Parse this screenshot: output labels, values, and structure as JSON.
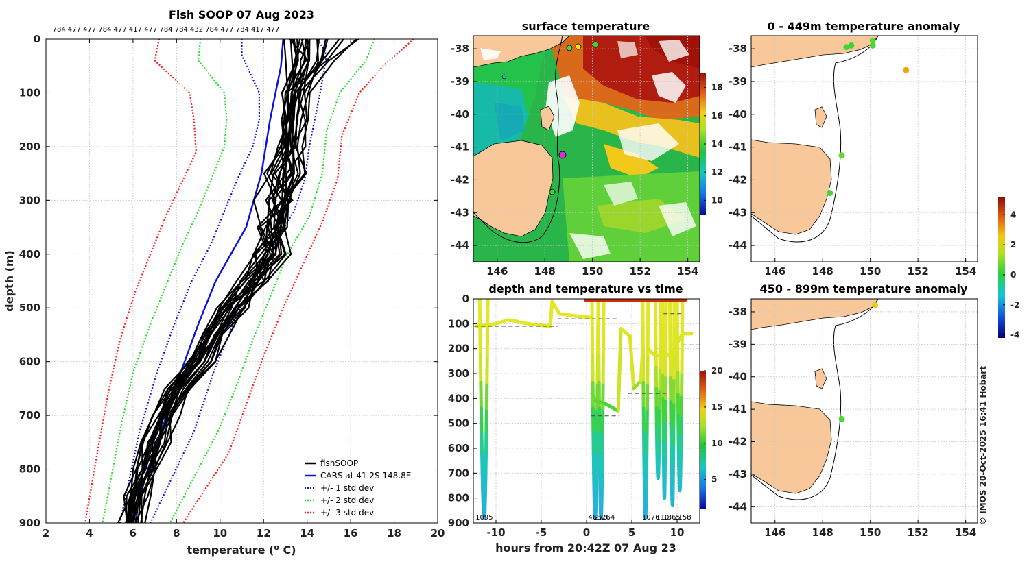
{
  "chart_data": [
    {
      "type": "line",
      "title": "Fish SOOP 07 Aug 2023",
      "top_labels": "784 477 477 784 477 417 477 784 784 432 784 477 784 417 477",
      "xlabel": "temperature (",
      "xlabel_sup": "o",
      "xlabel_end": " C)",
      "ylabel": "depth (m)",
      "xlim": [
        2,
        20
      ],
      "ylim": [
        0,
        900
      ],
      "xticks": [
        2,
        4,
        6,
        8,
        10,
        12,
        14,
        16,
        18,
        20
      ],
      "yticks": [
        0,
        100,
        200,
        300,
        400,
        500,
        600,
        700,
        800,
        900
      ],
      "legend_position": "bottom-right",
      "series": [
        {
          "name": "fishSOOP",
          "color": "#000000",
          "style": "solid"
        },
        {
          "name": "CARS at 41.2S 148.8E",
          "color": "#0a14d6",
          "style": "solid",
          "points": [
            [
              12.9,
              0
            ],
            [
              12.8,
              50
            ],
            [
              12.3,
              150
            ],
            [
              11.9,
              250
            ],
            [
              11.2,
              350
            ],
            [
              10.5,
              400
            ],
            [
              9.8,
              450
            ],
            [
              9.0,
              530
            ],
            [
              8.1,
              630
            ],
            [
              7.3,
              730
            ],
            [
              6.6,
              810
            ],
            [
              6.0,
              900
            ]
          ]
        },
        {
          "name": "+/- 1 std dev",
          "color": "#0a14d6",
          "style": "dotted",
          "lower": [
            [
              11.0,
              0
            ],
            [
              11.0,
              30
            ],
            [
              11.8,
              100
            ],
            [
              11.8,
              150
            ],
            [
              11.5,
              200
            ],
            [
              10.8,
              260
            ],
            [
              10.2,
              320
            ],
            [
              9.6,
              380
            ],
            [
              8.7,
              450
            ],
            [
              7.9,
              530
            ],
            [
              7.1,
              620
            ],
            [
              6.3,
              730
            ],
            [
              5.4,
              900
            ]
          ],
          "upper": [
            [
              14.5,
              0
            ],
            [
              14.9,
              30
            ],
            [
              14.6,
              100
            ],
            [
              14.1,
              200
            ],
            [
              13.9,
              260
            ],
            [
              13.4,
              320
            ],
            [
              12.5,
              380
            ],
            [
              11.5,
              450
            ],
            [
              10.6,
              530
            ],
            [
              9.7,
              620
            ],
            [
              8.8,
              730
            ],
            [
              6.8,
              900
            ]
          ]
        },
        {
          "name": "+/- 2 std dev",
          "color": "#22dd22",
          "style": "dotted",
          "lower": [
            [
              9.1,
              0
            ],
            [
              9.0,
              40
            ],
            [
              10.2,
              100
            ],
            [
              10.3,
              150
            ],
            [
              10.2,
              200
            ],
            [
              9.6,
              260
            ],
            [
              9.0,
              320
            ],
            [
              8.3,
              380
            ],
            [
              7.6,
              450
            ],
            [
              6.8,
              530
            ],
            [
              6.0,
              620
            ],
            [
              5.4,
              730
            ],
            [
              4.6,
              900
            ]
          ],
          "upper": [
            [
              17.1,
              0
            ],
            [
              16.7,
              40
            ],
            [
              15.5,
              100
            ],
            [
              14.9,
              170
            ],
            [
              14.7,
              250
            ],
            [
              14.1,
              330
            ],
            [
              13.1,
              400
            ],
            [
              12.3,
              480
            ],
            [
              11.5,
              560
            ],
            [
              10.8,
              640
            ],
            [
              9.9,
              730
            ],
            [
              7.7,
              900
            ]
          ]
        },
        {
          "name": "+/- 3 std dev",
          "color": "#ff1a1a",
          "style": "dotted",
          "lower": [
            [
              7.2,
              0
            ],
            [
              7.0,
              40
            ],
            [
              8.6,
              100
            ],
            [
              8.8,
              150
            ],
            [
              8.9,
              210
            ],
            [
              8.2,
              270
            ],
            [
              7.5,
              330
            ],
            [
              6.8,
              400
            ],
            [
              6.1,
              470
            ],
            [
              5.4,
              560
            ],
            [
              4.9,
              650
            ],
            [
              4.4,
              760
            ],
            [
              3.8,
              900
            ]
          ],
          "upper": [
            [
              18.9,
              0
            ],
            [
              17.5,
              50
            ],
            [
              16.4,
              100
            ],
            [
              15.6,
              180
            ],
            [
              15.4,
              260
            ],
            [
              14.7,
              340
            ],
            [
              13.8,
              420
            ],
            [
              12.9,
              500
            ],
            [
              12.0,
              590
            ],
            [
              11.2,
              680
            ],
            [
              10.4,
              770
            ],
            [
              8.3,
              900
            ]
          ]
        }
      ]
    },
    {
      "type": "heatmap",
      "title": "surface temperature",
      "xticks": [
        "146",
        "148",
        "150",
        "152",
        "154"
      ],
      "yticks": [
        "-38",
        "-39",
        "-40",
        "-41",
        "-42",
        "-43",
        "-44"
      ],
      "xlim": [
        145,
        154.5
      ],
      "ylim": [
        -44.5,
        -37.6
      ],
      "colorbar_ticks": [
        "10",
        "12",
        "14",
        "16",
        "18"
      ],
      "colorbar_range": [
        9,
        19
      ]
    },
    {
      "type": "line",
      "title": "depth and temperature vs time",
      "xlabel": "hours from 20:42Z 07 Aug 23",
      "xlim": [
        -12.5,
        12.5
      ],
      "ylim": [
        0,
        900
      ],
      "xticks": [
        "-10",
        "-5",
        "0",
        "5",
        "10"
      ],
      "yticks": [
        "0",
        "100",
        "200",
        "300",
        "400",
        "500",
        "600",
        "700",
        "800",
        "900"
      ],
      "bottom_labels": [
        {
          "t": -11.3,
          "text": "1095"
        },
        {
          "t": 0.9,
          "text": "468"
        },
        {
          "t": 1.6,
          "text": "270"
        },
        {
          "t": 2.4,
          "text": "264"
        },
        {
          "t": 7.1,
          "text": "1076"
        },
        {
          "t": 8.4,
          "text": "110"
        },
        {
          "t": 9.4,
          "text": "1365"
        },
        {
          "t": 10.6,
          "text": "1158"
        }
      ],
      "colorbar_ticks": [
        "5",
        "10",
        "15",
        "20"
      ],
      "colorbar_range": [
        1,
        20
      ]
    },
    {
      "type": "scatter",
      "title": "0 - 449m temperature anomaly",
      "xticks": [
        "146",
        "148",
        "150",
        "152",
        "154"
      ],
      "yticks": [
        "-38",
        "-39",
        "-40",
        "-41",
        "-42",
        "-43",
        "-44"
      ],
      "xlim": [
        145,
        154.5
      ],
      "ylim": [
        -44.5,
        -37.6
      ],
      "points": [
        {
          "lon": 149.0,
          "lat": -37.95,
          "anomaly": 0.3
        },
        {
          "lon": 149.2,
          "lat": -37.9,
          "anomaly": 0.2
        },
        {
          "lon": 150.1,
          "lat": -37.75,
          "anomaly": 0.5
        },
        {
          "lon": 150.1,
          "lat": -37.9,
          "anomaly": 0.4
        },
        {
          "lon": 151.5,
          "lat": -38.65,
          "anomaly": 3.0
        },
        {
          "lon": 148.8,
          "lat": -41.25,
          "anomaly": 0.6
        },
        {
          "lon": 148.3,
          "lat": -42.4,
          "anomaly": 0.3
        }
      ]
    },
    {
      "type": "scatter",
      "title": "450 - 899m temperature anomaly",
      "xticks": [
        "146",
        "148",
        "150",
        "152",
        "154"
      ],
      "yticks": [
        "-38",
        "-39",
        "-40",
        "-41",
        "-42",
        "-43",
        "-44"
      ],
      "xlim": [
        145,
        154.5
      ],
      "ylim": [
        -44.5,
        -37.6
      ],
      "colorbar_ticks": [
        "-4",
        "-2",
        "0",
        "2",
        "4"
      ],
      "colorbar_range": [
        -4.2,
        5.2
      ],
      "points": [
        {
          "lon": 150.2,
          "lat": -37.8,
          "anomaly": 2.5
        },
        {
          "lon": 148.8,
          "lat": -41.3,
          "anomaly": 0.4
        }
      ]
    }
  ],
  "credit": "© IMOS 20-Oct-2025 16:41 Hobart"
}
